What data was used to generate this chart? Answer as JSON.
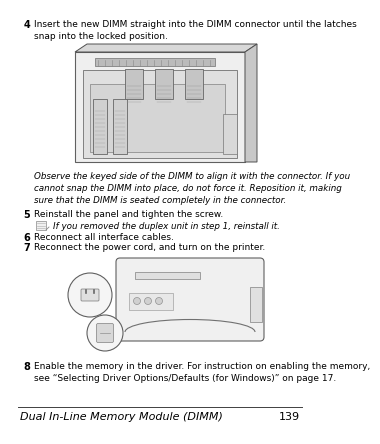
{
  "bg_color": "#ffffff",
  "footer_text": "Dual In-Line Memory Module (DIMM)",
  "footer_page": "139",
  "step4_num": "4",
  "step4_text": "Insert the new DIMM straight into the DIMM connector until the latches\nsnap into the locked position.",
  "italic_note": "Observe the keyed side of the DIMM to align it with the connector. If you\ncannot snap the DIMM into place, do not force it. Reposition it, making\nsure that the DIMM is seated completely in the connector.",
  "step5_num": "5",
  "step5_text": "Reinstall the panel and tighten the screw.",
  "note_icon_text": "If you removed the duplex unit in step 1, reinstall it.",
  "step6_num": "6",
  "step6_text": "Reconnect all interface cables.",
  "step7_num": "7",
  "step7_text": "Reconnect the power cord, and turn on the printer.",
  "step8_num": "8",
  "step8_text": "Enable the memory in the driver. For instruction on enabling the memory,\nsee “Selecting Driver Options/Defaults (for Windows)” on page 17."
}
